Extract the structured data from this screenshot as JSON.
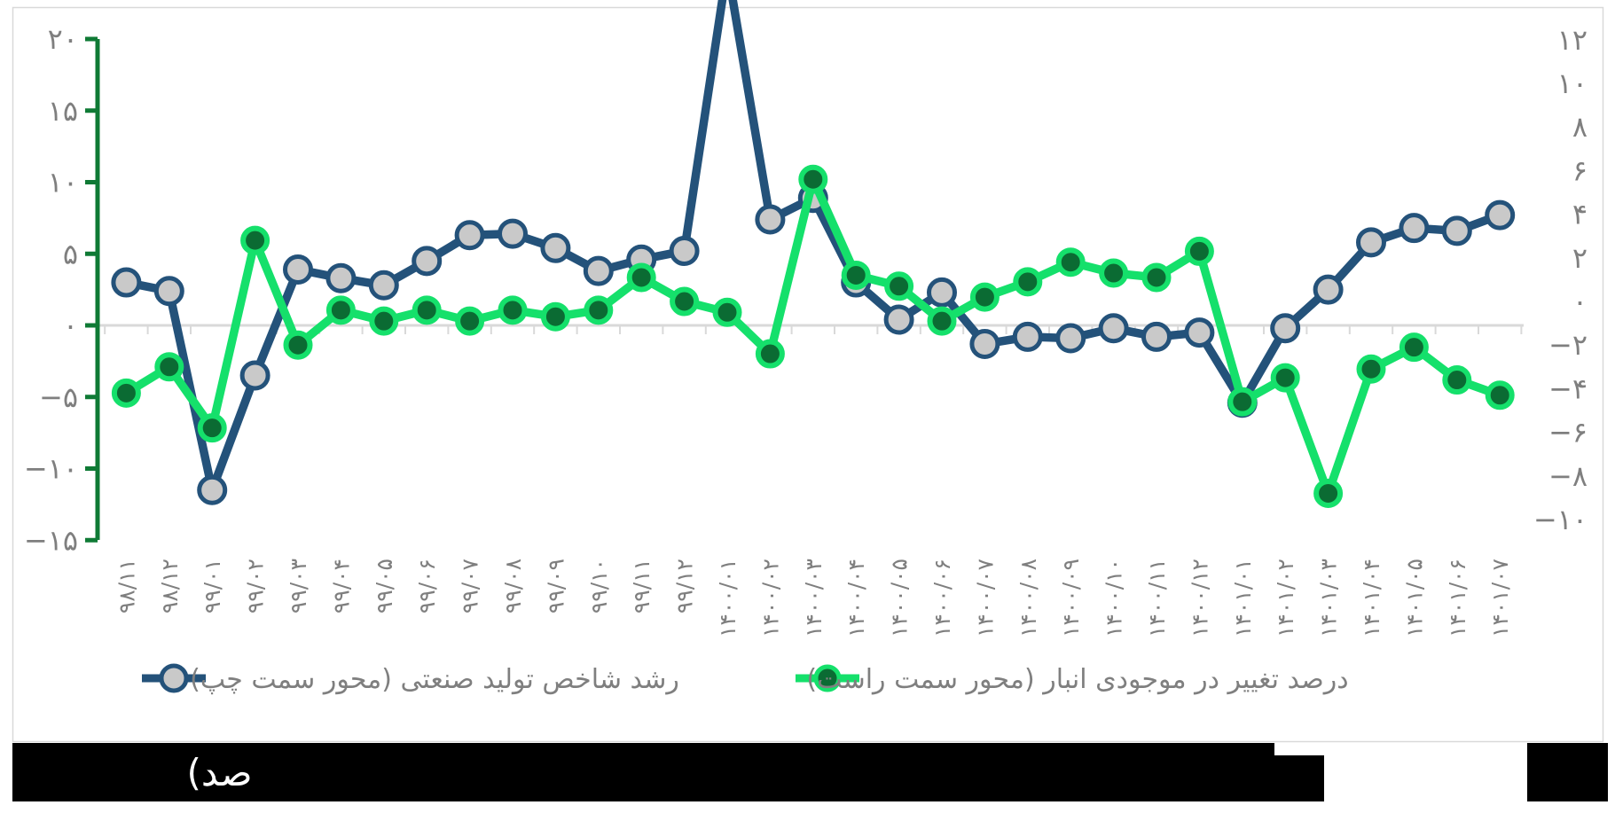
{
  "page": {
    "background": "#ffffff",
    "frame_border_color": "#d9d9d9"
  },
  "chart_data": {
    "type": "line",
    "title": "",
    "categories": [
      "۹۸/۱۱",
      "۹۸/۱۲",
      "۹۹/۰۱",
      "۹۹/۰۲",
      "۹۹/۰۳",
      "۹۹/۰۴",
      "۹۹/۰۵",
      "۹۹/۰۶",
      "۹۹/۰۷",
      "۹۹/۰۸",
      "۹۹/۰۹",
      "۹۹/۱۰",
      "۹۹/۱۱",
      "۹۹/۱۲",
      "۱۴۰۰/۰۱",
      "۱۴۰۰/۰۲",
      "۱۴۰۰/۰۳",
      "۱۴۰۰/۰۴",
      "۱۴۰۰/۰۵",
      "۱۴۰۰/۰۶",
      "۱۴۰۰/۰۷",
      "۱۴۰۰/۰۸",
      "۱۴۰۰/۰۹",
      "۱۴۰۰/۱۰",
      "۱۴۰۰/۱۱",
      "۱۴۰۰/۱۲",
      "۱۴۰۱/۰۱",
      "۱۴۰۱/۰۲",
      "۱۴۰۱/۰۳",
      "۱۴۰۱/۰۴",
      "۱۴۰۱/۰۵",
      "۱۴۰۱/۰۶",
      "۱۴۰۱/۰۷"
    ],
    "series": [
      {
        "name": "رشد شاخص تولید صنعتی (محور سمت چپ)",
        "axis": "left",
        "color": "#24527a",
        "marker_fill": "#c9c9c9",
        "values": [
          3.0,
          2.4,
          -11.5,
          -3.5,
          3.9,
          3.3,
          2.8,
          4.5,
          6.3,
          6.4,
          5.4,
          3.8,
          4.6,
          5.2,
          25.0,
          7.4,
          8.9,
          3.0,
          0.4,
          2.3,
          -1.3,
          -0.8,
          -0.9,
          -0.2,
          -0.8,
          -0.5,
          -5.4,
          -0.2,
          2.5,
          5.8,
          6.8,
          6.6,
          7.7
        ],
        "note": "value for 1400/01 spikes above the axis maximum and is clipped at the top of the chart"
      },
      {
        "name": "درصد تغییر در موجودی انبار (محور سمت راست)",
        "axis": "right",
        "color": "#15e06b",
        "marker_fill": "#0b6b33",
        "values": [
          -4.2,
          -3.0,
          -5.8,
          2.8,
          -2.0,
          -0.4,
          -0.9,
          -0.4,
          -0.9,
          -0.4,
          -0.7,
          -0.4,
          1.1,
          0.0,
          -0.5,
          -2.4,
          5.6,
          1.2,
          0.7,
          -0.9,
          0.2,
          0.9,
          1.8,
          1.3,
          1.1,
          2.3,
          -4.6,
          -3.5,
          -8.8,
          -3.1,
          -2.1,
          -3.6,
          -4.3
        ]
      }
    ],
    "left_axis": {
      "labels": [
        "۲۰",
        "۱۵",
        "۱۰",
        "۵",
        "۰",
        "−۵",
        "−۱۰",
        "−۱۵"
      ],
      "values": [
        20,
        15,
        10,
        5,
        0,
        -5,
        -10,
        -15
      ],
      "min": -15,
      "max": 20,
      "axis_color": "#0f7a35",
      "text_color": "#7f7f7f"
    },
    "right_axis": {
      "labels": [
        "۱۲",
        "۱۰",
        "۸",
        "۶",
        "۴",
        "۲",
        "۰",
        "−۲",
        "−۴",
        "−۶",
        "−۸",
        "−۱۰"
      ],
      "values": [
        12,
        10,
        8,
        6,
        4,
        2,
        0,
        -2,
        -4,
        -6,
        -8,
        -10
      ],
      "min": -10,
      "max": 12,
      "text_color": "#7f7f7f"
    },
    "x_axis": {
      "line_color": "#d9d9d9",
      "text_color": "#7f7f7f"
    },
    "legend_position": "bottom",
    "gridlines": false
  },
  "footer": {
    "visible_text": "صد)",
    "text_color": "#ffffff",
    "bar_color": "#000000"
  }
}
